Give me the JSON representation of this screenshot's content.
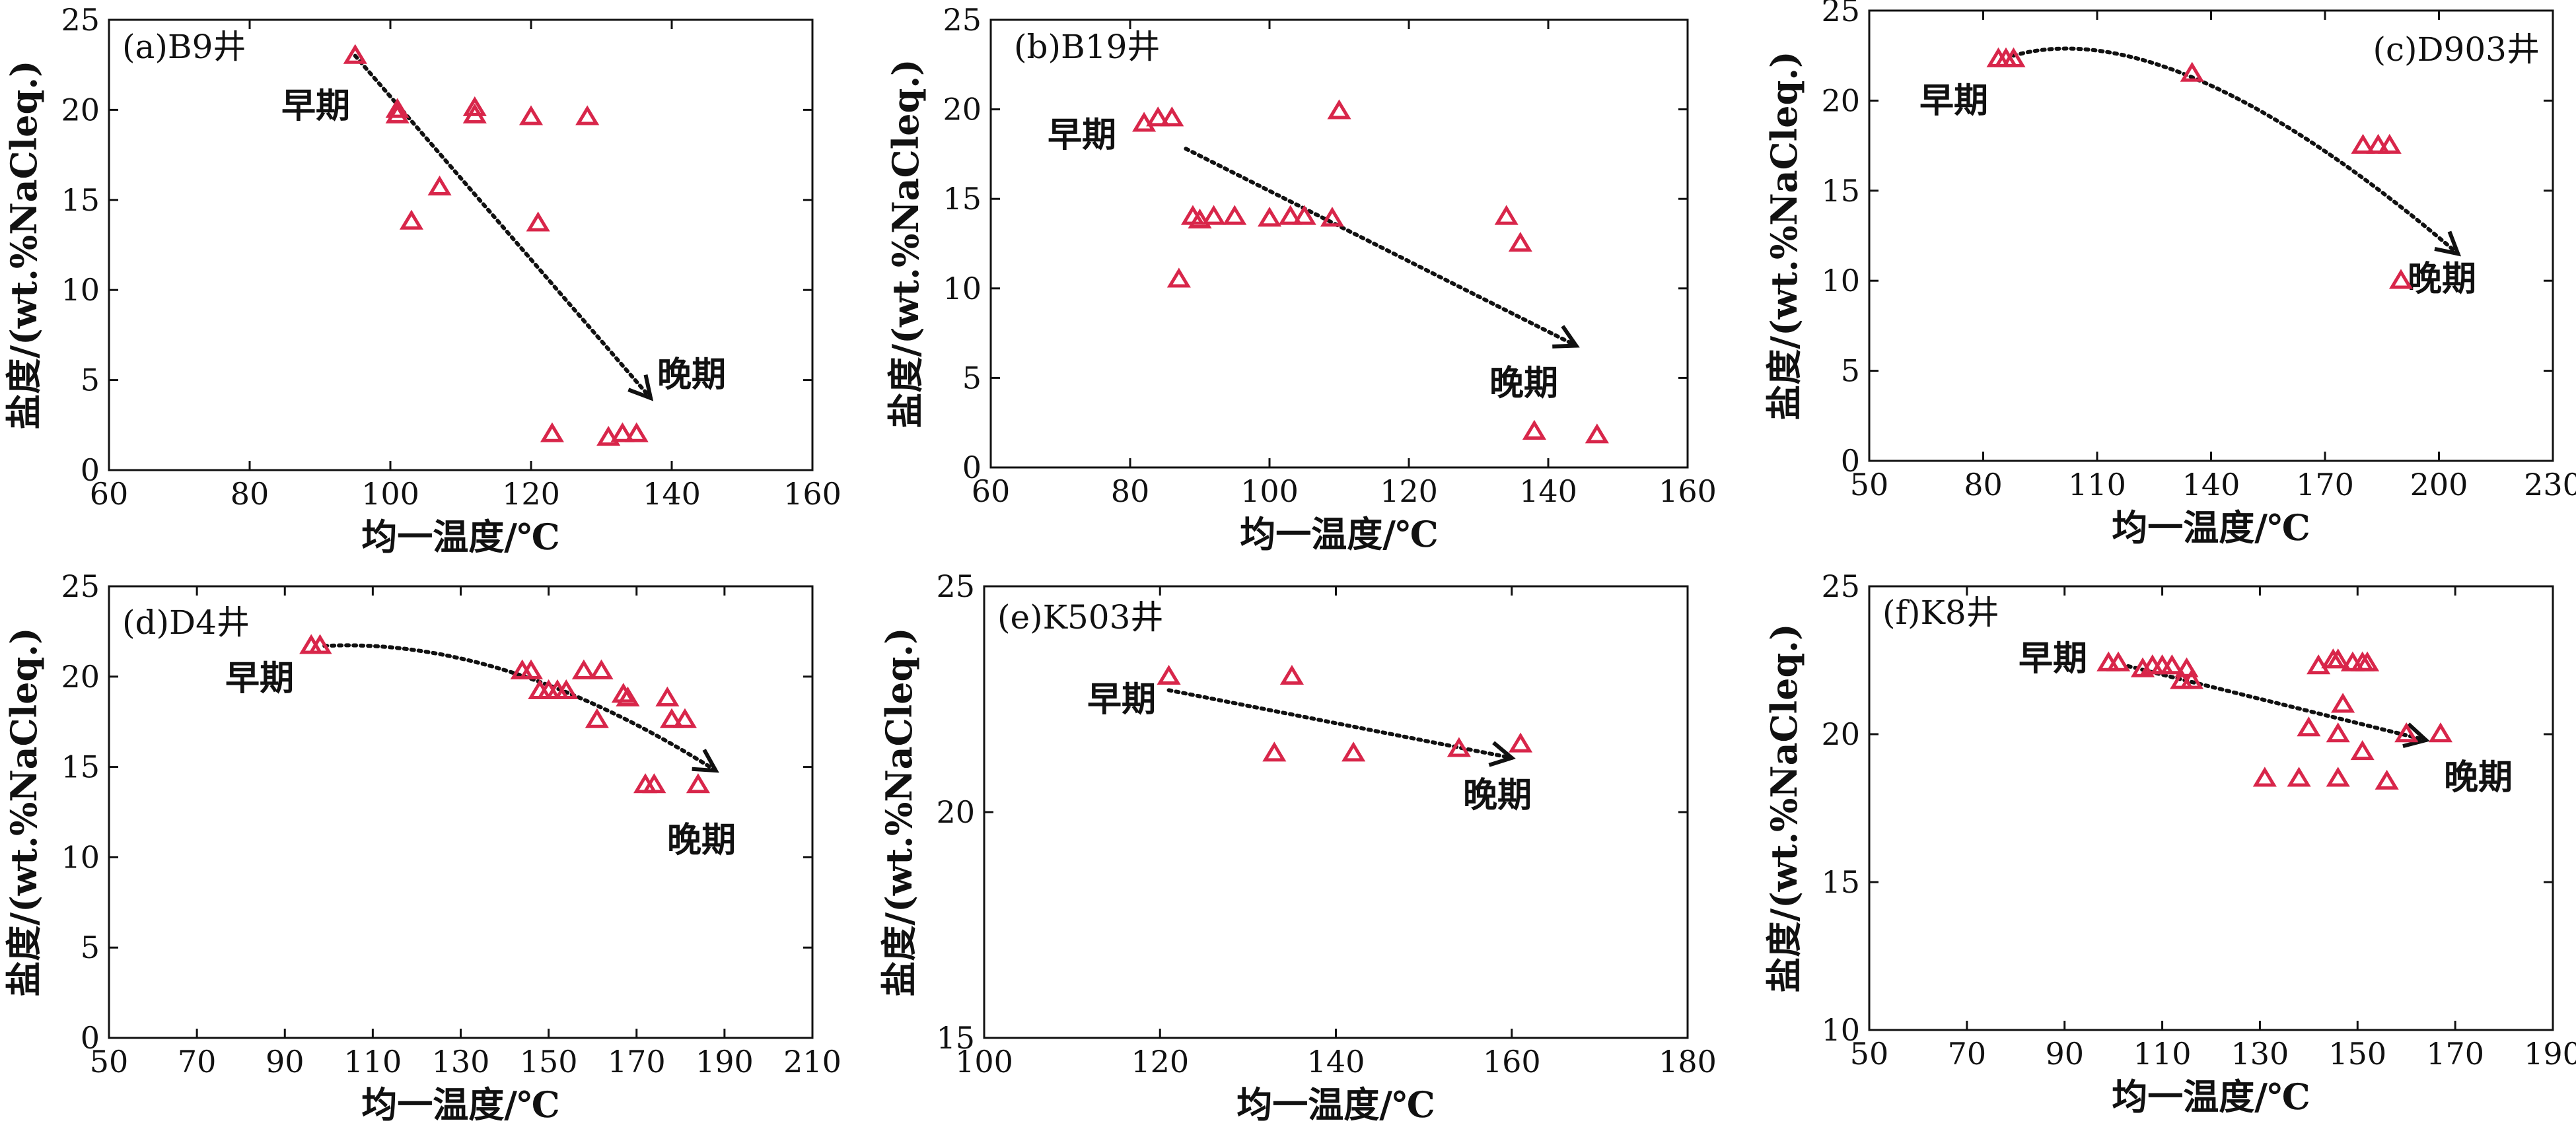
{
  "colors": {
    "marker": "#d8264a",
    "axis": "#111111",
    "background": "#ffffff"
  },
  "chart_data": [
    {
      "type": "scatter",
      "panel_label": "(a)B9井",
      "xlabel": "均一温度/℃",
      "ylabel": "盐度/(wt.%NaCleq.)",
      "xlim": [
        60,
        160
      ],
      "ylim": [
        0,
        25
      ],
      "xticks": [
        60,
        80,
        100,
        120,
        140,
        160
      ],
      "yticks": [
        0,
        5,
        10,
        15,
        20,
        25
      ],
      "points": [
        [
          95,
          23
        ],
        [
          101,
          20
        ],
        [
          101,
          19.7
        ],
        [
          103,
          13.8
        ],
        [
          107,
          15.7
        ],
        [
          112,
          20.1
        ],
        [
          112,
          19.7
        ],
        [
          120,
          19.6
        ],
        [
          121,
          13.7
        ],
        [
          128,
          19.6
        ],
        [
          123,
          2
        ],
        [
          131,
          1.8
        ],
        [
          133,
          2
        ],
        [
          135,
          2
        ]
      ],
      "early_label": "早期",
      "late_label": "晚期",
      "trend": {
        "shape": "line",
        "from": [
          95,
          23
        ],
        "to": [
          137,
          4
        ]
      }
    },
    {
      "type": "scatter",
      "panel_label": "(b)B19井",
      "xlabel": "均一温度/℃",
      "ylabel": "盐度/(wt.%NaCleq.)",
      "xlim": [
        60,
        160
      ],
      "ylim": [
        0,
        25
      ],
      "xticks": [
        60,
        80,
        100,
        120,
        140,
        160
      ],
      "yticks": [
        0,
        5,
        10,
        15,
        20,
        25
      ],
      "points": [
        [
          82,
          19.2
        ],
        [
          84,
          19.5
        ],
        [
          86,
          19.5
        ],
        [
          87,
          10.5
        ],
        [
          89,
          14
        ],
        [
          90,
          13.8
        ],
        [
          92,
          14
        ],
        [
          95,
          14
        ],
        [
          100,
          13.9
        ],
        [
          103,
          14
        ],
        [
          105,
          14
        ],
        [
          109,
          13.9
        ],
        [
          110,
          19.9
        ],
        [
          134,
          14
        ],
        [
          136,
          12.5
        ],
        [
          138,
          2
        ],
        [
          147,
          1.8
        ]
      ],
      "early_label": "早期",
      "late_label": "晚期",
      "trend": {
        "shape": "line",
        "from": [
          88,
          17.8
        ],
        "to": [
          144,
          6.8
        ]
      }
    },
    {
      "type": "scatter",
      "panel_label": "(c)D903井",
      "xlabel": "均一温度/℃",
      "ylabel": "盐度/(wt.%NaCleq.)",
      "xlim": [
        50,
        230
      ],
      "ylim": [
        0,
        25
      ],
      "xticks": [
        50,
        80,
        110,
        140,
        170,
        200,
        230
      ],
      "yticks": [
        0,
        5,
        10,
        15,
        20,
        25
      ],
      "points": [
        [
          84,
          22.3
        ],
        [
          86,
          22.3
        ],
        [
          88,
          22.3
        ],
        [
          135,
          21.5
        ],
        [
          180,
          17.5
        ],
        [
          184,
          17.5
        ],
        [
          187,
          17.5
        ],
        [
          190,
          10
        ]
      ],
      "early_label": "早期",
      "late_label": "晚期",
      "trend": {
        "shape": "curve",
        "from": [
          88,
          22.5
        ],
        "control": [
          130,
          25
        ],
        "to": [
          205,
          11.5
        ]
      }
    },
    {
      "type": "scatter",
      "panel_label": "(d)D4井",
      "xlabel": "均一温度/℃",
      "ylabel": "盐度/(wt.%NaCleq.)",
      "xlim": [
        50,
        210
      ],
      "ylim": [
        0,
        25
      ],
      "xticks": [
        50,
        70,
        90,
        110,
        130,
        150,
        170,
        190,
        210
      ],
      "yticks": [
        0,
        5,
        10,
        15,
        20,
        25
      ],
      "points": [
        [
          96,
          21.7
        ],
        [
          98,
          21.7
        ],
        [
          144,
          20.3
        ],
        [
          146,
          20.3
        ],
        [
          148,
          19.2
        ],
        [
          150,
          19.2
        ],
        [
          152,
          19.2
        ],
        [
          154,
          19.2
        ],
        [
          158,
          20.3
        ],
        [
          162,
          20.3
        ],
        [
          161,
          17.6
        ],
        [
          167,
          19
        ],
        [
          168,
          18.8
        ],
        [
          177,
          18.8
        ],
        [
          178,
          17.6
        ],
        [
          181,
          17.6
        ],
        [
          172,
          14
        ],
        [
          174,
          14
        ],
        [
          184,
          14
        ]
      ],
      "early_label": "早期",
      "late_label": "晚期",
      "trend": {
        "shape": "curve",
        "from": [
          99,
          21.7
        ],
        "control": [
          140,
          22.2
        ],
        "to": [
          188,
          14.8
        ]
      }
    },
    {
      "type": "scatter",
      "panel_label": "(e)K503井",
      "xlabel": "均一温度/℃",
      "ylabel": "盐度/(wt.%NaCleq.)",
      "xlim": [
        100,
        180
      ],
      "ylim": [
        15,
        25
      ],
      "xticks": [
        100,
        120,
        140,
        160,
        180
      ],
      "yticks": [
        15,
        20,
        25
      ],
      "points": [
        [
          121,
          23
        ],
        [
          133,
          21.3
        ],
        [
          135,
          23
        ],
        [
          142,
          21.3
        ],
        [
          154,
          21.4
        ],
        [
          161,
          21.5
        ]
      ],
      "early_label": "早期",
      "late_label": "晚期",
      "trend": {
        "shape": "line",
        "from": [
          121,
          22.7
        ],
        "to": [
          160,
          21.2
        ]
      }
    },
    {
      "type": "scatter",
      "panel_label": "(f)K8井",
      "xlabel": "均一温度/℃",
      "ylabel": "盐度/(wt.%NaCleq.)",
      "xlim": [
        50,
        190
      ],
      "ylim": [
        10,
        25
      ],
      "xticks": [
        50,
        70,
        90,
        110,
        130,
        150,
        170,
        190
      ],
      "yticks": [
        10,
        15,
        20,
        25
      ],
      "points": [
        [
          99,
          22.4
        ],
        [
          101,
          22.4
        ],
        [
          106,
          22.2
        ],
        [
          108,
          22.3
        ],
        [
          110,
          22.3
        ],
        [
          112,
          22.3
        ],
        [
          114,
          21.8
        ],
        [
          115,
          22.2
        ],
        [
          116,
          21.8
        ],
        [
          131,
          18.5
        ],
        [
          138,
          18.5
        ],
        [
          140,
          20.2
        ],
        [
          142,
          22.3
        ],
        [
          145,
          22.5
        ],
        [
          146,
          22.5
        ],
        [
          146,
          20
        ],
        [
          146,
          18.5
        ],
        [
          147,
          21
        ],
        [
          149,
          22.4
        ],
        [
          151,
          22.4
        ],
        [
          152,
          22.4
        ],
        [
          151,
          19.4
        ],
        [
          156,
          18.4
        ],
        [
          160,
          20
        ],
        [
          167,
          20
        ]
      ],
      "early_label": "早期",
      "late_label": "晚期",
      "trend": {
        "shape": "line",
        "from": [
          103,
          22.3
        ],
        "to": [
          164,
          19.8
        ]
      }
    }
  ]
}
